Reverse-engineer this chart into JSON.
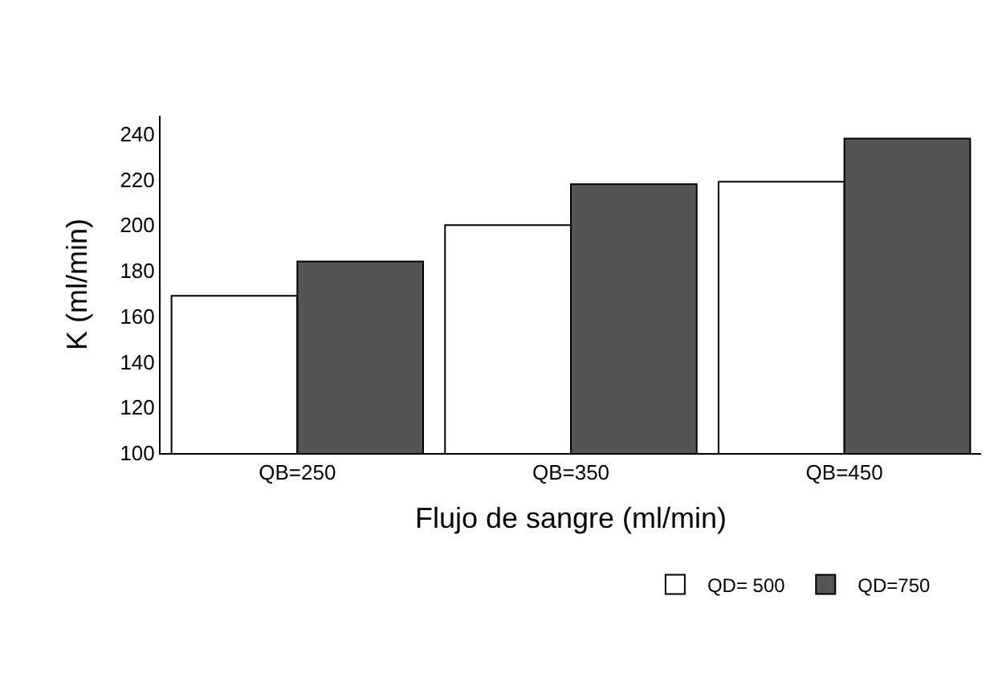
{
  "chart_data": {
    "type": "bar",
    "xlabel": "Flujo de sangre (ml/min)",
    "ylabel": "K (ml/min)",
    "categories": [
      "QB=250",
      "QB=350",
      "QB=450"
    ],
    "series": [
      {
        "name": "QD= 500",
        "color": "#ffffff",
        "values": [
          169,
          200,
          219
        ]
      },
      {
        "name": "QD=750",
        "color": "#555555",
        "values": [
          184,
          218,
          238
        ]
      }
    ],
    "ylim": [
      100,
      248
    ],
    "yticks": [
      100,
      120,
      140,
      160,
      180,
      200,
      220,
      240
    ],
    "legend": "bottom"
  }
}
